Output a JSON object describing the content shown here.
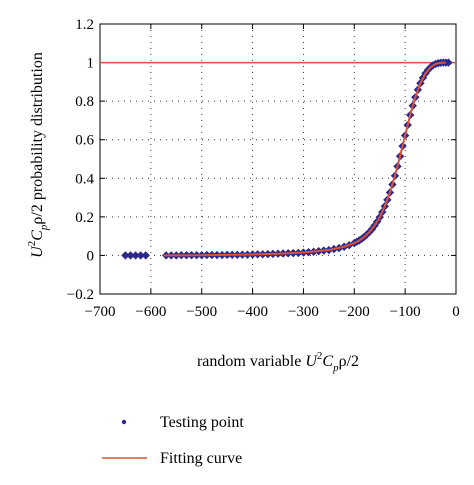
{
  "chart_data": {
    "type": "scatter",
    "xlabel": {
      "main": "random variable ",
      "u": "U",
      "sup": "2",
      "c": "C",
      "sub": "p",
      "rest": "ρ/2"
    },
    "ylabel": {
      "u": "U",
      "sup": "2",
      "c": "C",
      "sub": "p",
      "rest": "ρ/2 probability distribution"
    },
    "xlim": [
      -700,
      0
    ],
    "ylim": [
      -0.2,
      1.2
    ],
    "xticks": [
      -700,
      -600,
      -500,
      -400,
      -300,
      -200,
      -100,
      0
    ],
    "yticks": [
      -0.2,
      0,
      0.2,
      0.4,
      0.6,
      0.8,
      1,
      1.2
    ],
    "xtick_labels": [
      "−700",
      "−600",
      "−500",
      "−400",
      "−300",
      "−200",
      "−100",
      "0"
    ],
    "ytick_labels": [
      "−0.2",
      "0",
      "0.2",
      "0.4",
      "0.6",
      "0.8",
      "1",
      "1.2"
    ],
    "grid": "dotted",
    "reference_line": {
      "y": 1,
      "color": "#d9533a"
    },
    "legend_position": "bottom",
    "series": [
      {
        "name": "Testing point",
        "kind": "scatter",
        "marker": "diamond",
        "color": "#2b2a8c",
        "x": [
          -650,
          -640,
          -630,
          -620,
          -610,
          -570,
          -560,
          -550,
          -540,
          -530,
          -520,
          -510,
          -500,
          -490,
          -480,
          -470,
          -460,
          -450,
          -440,
          -430,
          -420,
          -410,
          -400,
          -390,
          -380,
          -370,
          -360,
          -350,
          -340,
          -330,
          -320,
          -310,
          -300,
          -290,
          -280,
          -270,
          -260,
          -250,
          -240,
          -230,
          -220,
          -210,
          -200,
          -195,
          -190,
          -185,
          -180,
          -175,
          -170,
          -165,
          -160,
          -155,
          -150,
          -145,
          -140,
          -135,
          -130,
          -125,
          -120,
          -115,
          -110,
          -105,
          -100,
          -95,
          -90,
          -85,
          -80,
          -75,
          -70,
          -65,
          -60,
          -55,
          -50,
          -45,
          -40,
          -35,
          -30,
          -25,
          -20,
          -15
        ],
        "y": [
          0.0,
          0.0,
          0.0,
          0.0,
          0.0,
          0.0,
          0.0,
          0.0,
          0.001,
          0.001,
          0.001,
          0.001,
          0.001,
          0.002,
          0.002,
          0.002,
          0.002,
          0.003,
          0.003,
          0.003,
          0.004,
          0.004,
          0.005,
          0.006,
          0.006,
          0.007,
          0.008,
          0.009,
          0.01,
          0.011,
          0.012,
          0.013,
          0.015,
          0.017,
          0.019,
          0.022,
          0.025,
          0.028,
          0.033,
          0.038,
          0.045,
          0.053,
          0.064,
          0.071,
          0.078,
          0.087,
          0.097,
          0.109,
          0.122,
          0.137,
          0.155,
          0.175,
          0.198,
          0.225,
          0.255,
          0.288,
          0.326,
          0.368,
          0.413,
          0.462,
          0.514,
          0.567,
          0.622,
          0.676,
          0.728,
          0.776,
          0.82,
          0.859,
          0.893,
          0.921,
          0.944,
          0.962,
          0.976,
          0.986,
          0.993,
          0.997,
          0.999,
          1.0,
          1.0,
          1.0
        ]
      },
      {
        "name": "Fitting curve",
        "kind": "line",
        "color": "#d9533a",
        "x": [
          -575,
          -550,
          -500,
          -450,
          -400,
          -350,
          -300,
          -250,
          -220,
          -200,
          -190,
          -180,
          -170,
          -160,
          -150,
          -140,
          -130,
          -120,
          -110,
          -100,
          -90,
          -80,
          -70,
          -60,
          -50,
          -40,
          -30,
          -20
        ],
        "y": [
          0.0,
          0.0,
          0.001,
          0.003,
          0.005,
          0.009,
          0.015,
          0.028,
          0.045,
          0.064,
          0.078,
          0.097,
          0.122,
          0.155,
          0.198,
          0.255,
          0.326,
          0.413,
          0.514,
          0.622,
          0.728,
          0.82,
          0.893,
          0.944,
          0.976,
          0.993,
          0.999,
          1.0
        ]
      }
    ]
  }
}
